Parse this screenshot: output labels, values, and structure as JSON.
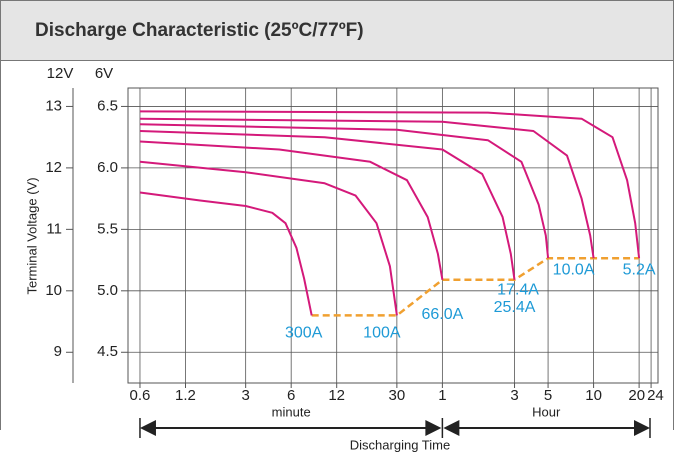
{
  "chart_data": {
    "type": "line",
    "title": "Discharge Characteristic (25ºC/77ºF)",
    "y_axis_label": "Terminal Voltage (V)",
    "y_axis_header": "12V",
    "y2_axis_header": "6V",
    "x_axis_label": "Discharging Time",
    "x_group_labels": [
      "minute",
      "Hour"
    ],
    "xscale": "log",
    "xlim": [
      0.5,
      1600
    ],
    "xticks": [
      0.6,
      1.2,
      3,
      6,
      12,
      30,
      {
        "value": 60,
        "label": "1"
      },
      {
        "value": 180,
        "label": "3"
      },
      {
        "value": 300,
        "label": "5"
      },
      {
        "value": 600,
        "label": "10"
      },
      {
        "value": 1200,
        "label": "20"
      },
      {
        "value": 1440,
        "label": "24"
      }
    ],
    "ylim": [
      8.5,
      13.3
    ],
    "yticks": [
      9,
      10,
      11,
      12,
      13
    ],
    "y2lim": [
      4.25,
      6.65
    ],
    "y2ticks": [
      4.5,
      {
        "value": 5,
        "label": "5.0"
      },
      5.5,
      {
        "value": 6,
        "label": "6.0"
      },
      6.5
    ],
    "grid": true,
    "series": [
      {
        "name": "300A",
        "color": "#d4197a",
        "x": [
          0.6,
          1.5,
          3,
          4.5,
          5.5,
          6.5,
          7.3,
          8.2
        ],
        "values": [
          11.6,
          11.47,
          11.38,
          11.27,
          11.1,
          10.7,
          10.2,
          9.6
        ]
      },
      {
        "name": "100A",
        "color": "#d4197a",
        "x": [
          0.6,
          3,
          10,
          16,
          22,
          27,
          30
        ],
        "values": [
          12.1,
          11.93,
          11.75,
          11.55,
          11.1,
          10.4,
          9.6
        ]
      },
      {
        "name": "66.0A",
        "color": "#d4197a",
        "x": [
          0.6,
          5,
          20,
          35,
          48,
          56,
          60
        ],
        "values": [
          12.43,
          12.3,
          12.1,
          11.8,
          11.2,
          10.6,
          10.18
        ]
      },
      {
        "name": "25.4A",
        "color": "#d4197a",
        "x": [
          0.6,
          10,
          60,
          110,
          150,
          170,
          180
        ],
        "values": [
          12.6,
          12.5,
          12.3,
          11.9,
          11.2,
          10.6,
          10.18
        ]
      },
      {
        "name": "17.4A",
        "color": "#d4197a",
        "x": [
          0.6,
          30,
          120,
          200,
          260,
          290,
          300
        ],
        "values": [
          12.71,
          12.62,
          12.45,
          12.1,
          11.4,
          10.9,
          10.53
        ]
      },
      {
        "name": "10.0A",
        "color": "#d4197a",
        "x": [
          0.6,
          60,
          240,
          400,
          500,
          570,
          600
        ],
        "values": [
          12.8,
          12.75,
          12.6,
          12.2,
          11.5,
          10.9,
          10.53
        ]
      },
      {
        "name": "5.2A",
        "color": "#d4197a",
        "x": [
          0.6,
          120,
          500,
          800,
          1000,
          1130,
          1200
        ],
        "values": [
          12.92,
          12.9,
          12.8,
          12.5,
          11.8,
          11.1,
          10.53
        ]
      }
    ],
    "cutoff_line": {
      "color": "#f0a030",
      "x": [
        8.2,
        30,
        60,
        180,
        300,
        1200
      ],
      "values": [
        9.6,
        9.6,
        10.18,
        10.18,
        10.53,
        10.53
      ]
    },
    "label_color": "#1e9ad6"
  }
}
